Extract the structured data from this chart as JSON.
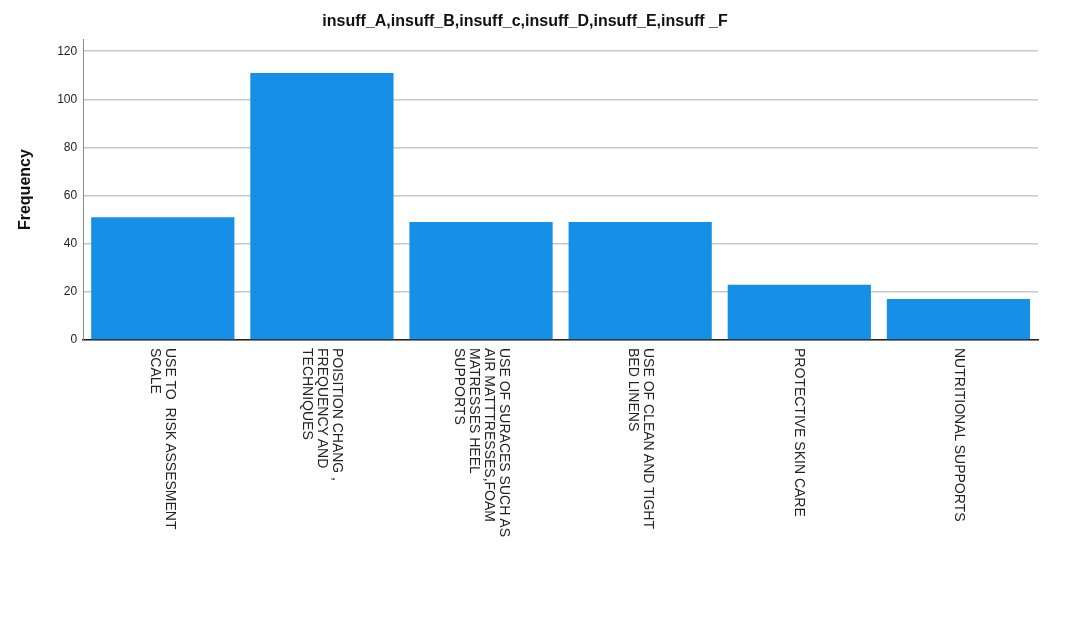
{
  "chart_data": {
    "type": "bar",
    "title": "insuff_A,insuff_B,insuff_c,insuff_D,insuff_E,insuff _F",
    "ylabel": "Frequency",
    "categories": [
      "USE TO  RISK ASSESMENT\nSCALE",
      "POISITION CHANG ,\nFREQUENCY AND\nTECHNIQUES",
      "USE OF SURACES SUCH AS\nAIR MATTTRESSES,FOAM\nMATRESSES HEEL\nSUPPORTS",
      "USE OF CLEAN AND TIGHT\nBED LINENS",
      "PROTECTIVE SKIN CARE",
      "NUTRITIONAL SUPPORTS"
    ],
    "values": [
      51,
      111,
      49,
      49,
      23,
      17
    ],
    "color": "#1590e6",
    "ylim": [
      0,
      125
    ],
    "yticks": [
      0,
      20,
      40,
      60,
      80,
      100,
      120
    ],
    "grid": "y"
  }
}
